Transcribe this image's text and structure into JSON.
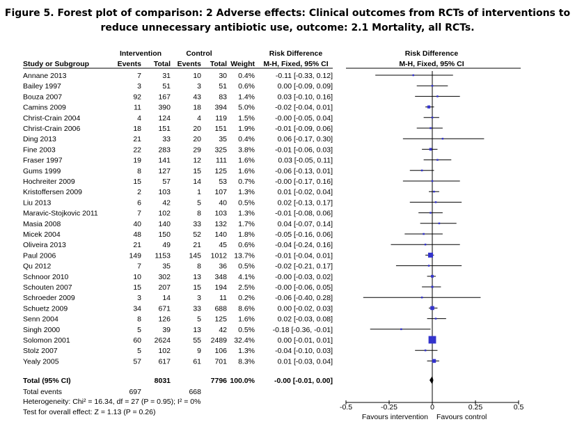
{
  "title": {
    "line1": "Figure 5.   Forest plot of comparison: 2 Adverse effects: Clinical outcomes from RCTs of interventions to",
    "line2": "reduce unnecessary antibiotic use, outcome: 2.1 Mortality, all RCTs."
  },
  "colors": {
    "square": "#3333cc",
    "diamond": "#000000",
    "line": "#000000"
  },
  "chart_data": {
    "type": "forest",
    "headers": {
      "intervention_group": "Intervention",
      "control_group": "Control",
      "study": "Study or Subgroup",
      "events": "Events",
      "total": "Total",
      "weight": "Weight",
      "rd_table_1": "Risk Difference",
      "rd_table_2": "M-H, Fixed, 95% CI",
      "rd_plot_1": "Risk Difference",
      "rd_plot_2": "M-H, Fixed, 95% CI"
    },
    "studies": [
      {
        "name": "Annane 2013",
        "ie": "7",
        "it": "31",
        "ce": "10",
        "ct": "30",
        "weight": "0.4%",
        "ci": "-0.11 [-0.33, 0.12]",
        "est": -0.11,
        "lo": -0.33,
        "hi": 0.12,
        "w": 0.4
      },
      {
        "name": "Bailey 1997",
        "ie": "3",
        "it": "51",
        "ce": "3",
        "ct": "51",
        "weight": "0.6%",
        "ci": "0.00 [-0.09, 0.09]",
        "est": 0.0,
        "lo": -0.09,
        "hi": 0.09,
        "w": 0.6
      },
      {
        "name": "Bouza 2007",
        "ie": "92",
        "it": "167",
        "ce": "43",
        "ct": "83",
        "weight": "1.4%",
        "ci": "0.03 [-0.10, 0.16]",
        "est": 0.03,
        "lo": -0.1,
        "hi": 0.16,
        "w": 1.4
      },
      {
        "name": "Camins 2009",
        "ie": "11",
        "it": "390",
        "ce": "18",
        "ct": "394",
        "weight": "5.0%",
        "ci": "-0.02 [-0.04, 0.01]",
        "est": -0.02,
        "lo": -0.04,
        "hi": 0.01,
        "w": 5.0
      },
      {
        "name": "Christ-Crain 2004",
        "ie": "4",
        "it": "124",
        "ce": "4",
        "ct": "119",
        "weight": "1.5%",
        "ci": "-0.00 [-0.05, 0.04]",
        "est": 0.0,
        "lo": -0.05,
        "hi": 0.04,
        "w": 1.5
      },
      {
        "name": "Christ-Crain 2006",
        "ie": "18",
        "it": "151",
        "ce": "20",
        "ct": "151",
        "weight": "1.9%",
        "ci": "-0.01 [-0.09, 0.06]",
        "est": -0.01,
        "lo": -0.09,
        "hi": 0.06,
        "w": 1.9
      },
      {
        "name": "Ding 2013",
        "ie": "21",
        "it": "33",
        "ce": "20",
        "ct": "35",
        "weight": "0.4%",
        "ci": "0.06 [-0.17, 0.30]",
        "est": 0.06,
        "lo": -0.17,
        "hi": 0.3,
        "w": 0.4
      },
      {
        "name": "Fine 2003",
        "ie": "22",
        "it": "283",
        "ce": "29",
        "ct": "325",
        "weight": "3.8%",
        "ci": "-0.01 [-0.06, 0.03]",
        "est": -0.01,
        "lo": -0.06,
        "hi": 0.03,
        "w": 3.8
      },
      {
        "name": "Fraser 1997",
        "ie": "19",
        "it": "141",
        "ce": "12",
        "ct": "111",
        "weight": "1.6%",
        "ci": "0.03 [-0.05, 0.11]",
        "est": 0.03,
        "lo": -0.05,
        "hi": 0.11,
        "w": 1.6
      },
      {
        "name": "Gums 1999",
        "ie": "8",
        "it": "127",
        "ce": "15",
        "ct": "125",
        "weight": "1.6%",
        "ci": "-0.06 [-0.13, 0.01]",
        "est": -0.06,
        "lo": -0.13,
        "hi": 0.01,
        "w": 1.6
      },
      {
        "name": "Hochreiter 2009",
        "ie": "15",
        "it": "57",
        "ce": "14",
        "ct": "53",
        "weight": "0.7%",
        "ci": "-0.00 [-0.17, 0.16]",
        "est": 0.0,
        "lo": -0.17,
        "hi": 0.16,
        "w": 0.7
      },
      {
        "name": "Kristoffersen 2009",
        "ie": "2",
        "it": "103",
        "ce": "1",
        "ct": "107",
        "weight": "1.3%",
        "ci": "0.01 [-0.02, 0.04]",
        "est": 0.01,
        "lo": -0.02,
        "hi": 0.04,
        "w": 1.3
      },
      {
        "name": "Liu 2013",
        "ie": "6",
        "it": "42",
        "ce": "5",
        "ct": "40",
        "weight": "0.5%",
        "ci": "0.02 [-0.13, 0.17]",
        "est": 0.02,
        "lo": -0.13,
        "hi": 0.17,
        "w": 0.5
      },
      {
        "name": "Maravic-Stojkovic 2011",
        "ie": "7",
        "it": "102",
        "ce": "8",
        "ct": "103",
        "weight": "1.3%",
        "ci": "-0.01 [-0.08, 0.06]",
        "est": -0.01,
        "lo": -0.08,
        "hi": 0.06,
        "w": 1.3
      },
      {
        "name": "Masia 2008",
        "ie": "40",
        "it": "140",
        "ce": "33",
        "ct": "132",
        "weight": "1.7%",
        "ci": "0.04 [-0.07, 0.14]",
        "est": 0.04,
        "lo": -0.07,
        "hi": 0.14,
        "w": 1.7
      },
      {
        "name": "Micek 2004",
        "ie": "48",
        "it": "150",
        "ce": "52",
        "ct": "140",
        "weight": "1.8%",
        "ci": "-0.05 [-0.16, 0.06]",
        "est": -0.05,
        "lo": -0.16,
        "hi": 0.06,
        "w": 1.8
      },
      {
        "name": "Oliveira 2013",
        "ie": "21",
        "it": "49",
        "ce": "21",
        "ct": "45",
        "weight": "0.6%",
        "ci": "-0.04 [-0.24, 0.16]",
        "est": -0.04,
        "lo": -0.24,
        "hi": 0.16,
        "w": 0.6
      },
      {
        "name": "Paul 2006",
        "ie": "149",
        "it": "1153",
        "ce": "145",
        "ct": "1012",
        "weight": "13.7%",
        "ci": "-0.01 [-0.04, 0.01]",
        "est": -0.01,
        "lo": -0.04,
        "hi": 0.01,
        "w": 13.7
      },
      {
        "name": "Qu 2012",
        "ie": "7",
        "it": "35",
        "ce": "8",
        "ct": "36",
        "weight": "0.5%",
        "ci": "-0.02 [-0.21, 0.17]",
        "est": -0.02,
        "lo": -0.21,
        "hi": 0.17,
        "w": 0.5
      },
      {
        "name": "Schnoor 2010",
        "ie": "10",
        "it": "302",
        "ce": "13",
        "ct": "348",
        "weight": "4.1%",
        "ci": "-0.00 [-0.03, 0.02]",
        "est": 0.0,
        "lo": -0.03,
        "hi": 0.02,
        "w": 4.1
      },
      {
        "name": "Schouten 2007",
        "ie": "15",
        "it": "207",
        "ce": "15",
        "ct": "194",
        "weight": "2.5%",
        "ci": "-0.00 [-0.06, 0.05]",
        "est": 0.0,
        "lo": -0.06,
        "hi": 0.05,
        "w": 2.5
      },
      {
        "name": "Schroeder 2009",
        "ie": "3",
        "it": "14",
        "ce": "3",
        "ct": "11",
        "weight": "0.2%",
        "ci": "-0.06 [-0.40, 0.28]",
        "est": -0.06,
        "lo": -0.4,
        "hi": 0.28,
        "w": 0.2
      },
      {
        "name": "Schuetz 2009",
        "ie": "34",
        "it": "671",
        "ce": "33",
        "ct": "688",
        "weight": "8.6%",
        "ci": "0.00 [-0.02, 0.03]",
        "est": 0.0,
        "lo": -0.02,
        "hi": 0.03,
        "w": 8.6
      },
      {
        "name": "Senn 2004",
        "ie": "8",
        "it": "126",
        "ce": "5",
        "ct": "125",
        "weight": "1.6%",
        "ci": "0.02 [-0.03, 0.08]",
        "est": 0.02,
        "lo": -0.03,
        "hi": 0.08,
        "w": 1.6
      },
      {
        "name": "Singh 2000",
        "ie": "5",
        "it": "39",
        "ce": "13",
        "ct": "42",
        "weight": "0.5%",
        "ci": "-0.18 [-0.36, -0.01]",
        "est": -0.18,
        "lo": -0.36,
        "hi": -0.01,
        "w": 0.5
      },
      {
        "name": "Solomon 2001",
        "ie": "60",
        "it": "2624",
        "ce": "55",
        "ct": "2489",
        "weight": "32.4%",
        "ci": "0.00 [-0.01, 0.01]",
        "est": 0.0,
        "lo": -0.01,
        "hi": 0.01,
        "w": 32.4
      },
      {
        "name": "Stolz 2007",
        "ie": "5",
        "it": "102",
        "ce": "9",
        "ct": "106",
        "weight": "1.3%",
        "ci": "-0.04 [-0.10, 0.03]",
        "est": -0.04,
        "lo": -0.1,
        "hi": 0.03,
        "w": 1.3
      },
      {
        "name": "Yealy 2005",
        "ie": "57",
        "it": "617",
        "ce": "61",
        "ct": "701",
        "weight": "8.3%",
        "ci": "0.01 [-0.03, 0.04]",
        "est": 0.01,
        "lo": -0.03,
        "hi": 0.04,
        "w": 8.3
      }
    ],
    "total": {
      "label": "Total (95% CI)",
      "it": "8031",
      "ct": "7796",
      "weight": "100.0%",
      "ci": "-0.00 [-0.01, 0.00]",
      "est": 0.0,
      "lo": -0.01,
      "hi": 0.0
    },
    "total_events": {
      "label": "Total events",
      "ie": "697",
      "ce": "668"
    },
    "heterogeneity": "Heterogeneity: Chi² = 16.34, df = 27 (P = 0.95); I² = 0%",
    "overall_effect": "Test for overall effect: Z = 1.13 (P = 0.26)",
    "xaxis": {
      "range": [
        -0.5,
        0.5
      ],
      "ticks": [
        -0.5,
        -0.25,
        0,
        0.25,
        0.5
      ],
      "tick_labels": [
        "-0.5",
        "-0.25",
        "0",
        "0.25",
        "0.5"
      ],
      "label_left": "Favours intervention",
      "label_right": "Favours control"
    }
  }
}
